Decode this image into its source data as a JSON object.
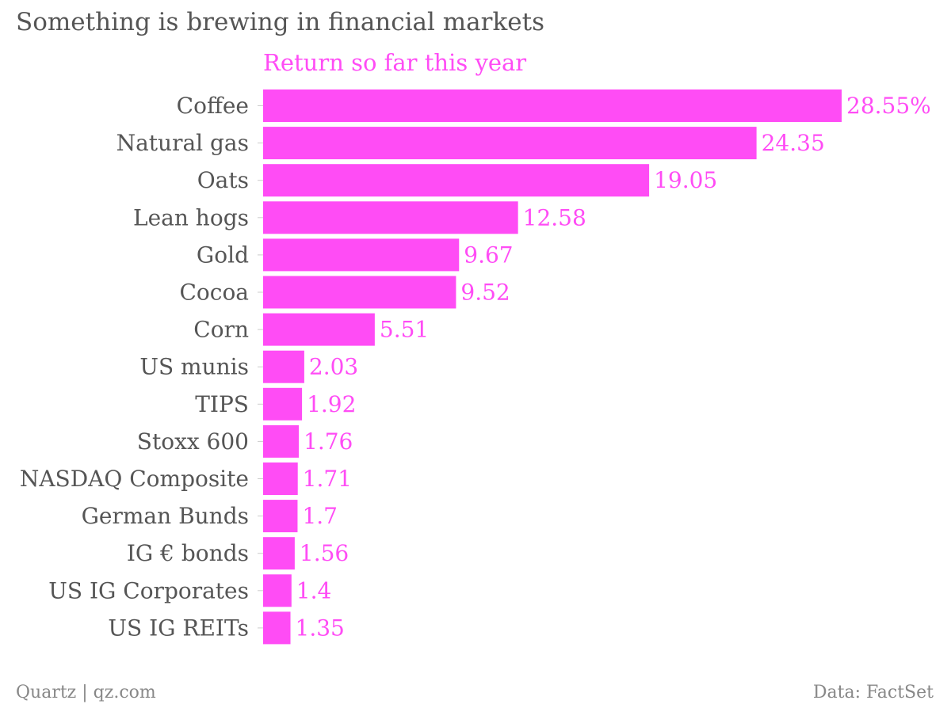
{
  "chart_data": {
    "type": "bar",
    "orientation": "horizontal",
    "title": "Something is brewing in financial markets",
    "series": [
      {
        "name": "Return so far this year",
        "values": [
          28.55,
          24.35,
          19.05,
          12.58,
          9.67,
          9.52,
          5.51,
          2.03,
          1.92,
          1.76,
          1.71,
          1.7,
          1.56,
          1.4,
          1.35
        ],
        "labels": [
          "28.55%",
          "24.35",
          "19.05",
          "12.58",
          "9.67",
          "9.52",
          "5.51",
          "2.03",
          "1.92",
          "1.76",
          "1.71",
          "1.7",
          "1.56",
          "1.4",
          "1.35"
        ]
      }
    ],
    "categories": [
      "Coffee",
      "Natural gas",
      "Oats",
      "Lean hogs",
      "Gold",
      "Cocoa",
      "Corn",
      "US munis",
      "TIPS",
      "Stoxx 600",
      "NASDAQ Composite",
      "German Bunds",
      "IG € bonds",
      "US IG Corporates",
      "US IG REITs"
    ],
    "xlim": [
      0,
      28.55
    ],
    "grid": false,
    "legend": "none",
    "xlabel": "",
    "ylabel": ""
  },
  "colors": {
    "bar": "#ff4cf5",
    "bar_label": "#ff4cf5",
    "category_label": "#555555",
    "title": "#555555",
    "footer": "#888888",
    "axis_tick": "#cccccc"
  },
  "footer": {
    "source_left": "Quartz | qz.com",
    "source_right": "Data: FactSet"
  }
}
